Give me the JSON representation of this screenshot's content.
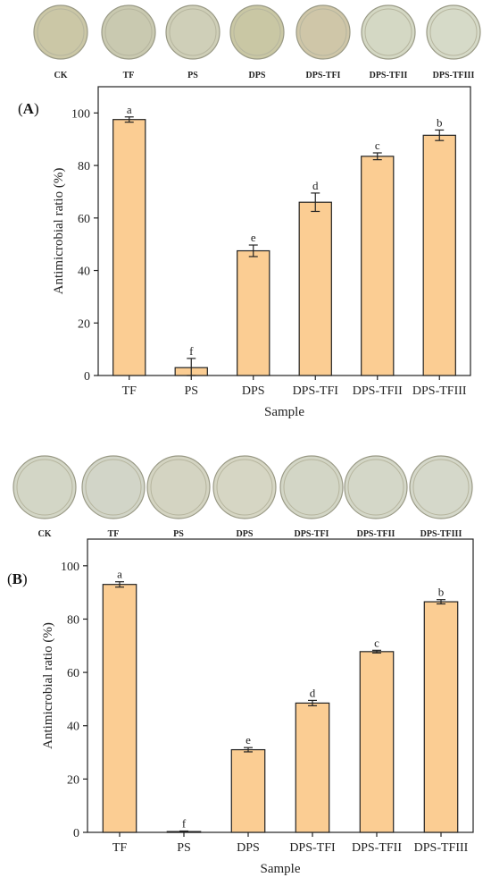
{
  "panels": [
    {
      "panel_label": "A",
      "plate_labels": [
        "CK",
        "TF",
        "PS",
        "DPS",
        "DPS-TFI",
        "DPS-TFII",
        "DPS-TFIII"
      ],
      "plate_colors": [
        "#cbc7a6",
        "#c9c9b0",
        "#cfcfb8",
        "#c9c7a4",
        "#cfc6a8",
        "#d4d8c4",
        "#d6dac8"
      ],
      "chart_data": {
        "type": "bar",
        "categories": [
          "TF",
          "PS",
          "DPS",
          "DPS-TFI",
          "DPS-TFII",
          "DPS-TFIII"
        ],
        "values": [
          97.5,
          3.0,
          47.5,
          66.0,
          83.5,
          91.5
        ],
        "errors": [
          1.0,
          3.5,
          2.2,
          3.5,
          1.3,
          2.0
        ],
        "significance": [
          "a",
          "f",
          "e",
          "d",
          "c",
          "b"
        ],
        "xlabel": "Sample",
        "ylabel": "Antimicrobial ratio (%)",
        "ylim": [
          0,
          110
        ],
        "yticks": [
          0,
          20,
          40,
          60,
          80,
          100
        ],
        "bar_color": "#fbcd93",
        "grid": false
      }
    },
    {
      "panel_label": "B",
      "plate_labels": [
        "CK",
        "TF",
        "PS",
        "DPS",
        "DPS-TFI",
        "DPS-TFII",
        "DPS-TFIII"
      ],
      "plate_colors": [
        "#d3d6c6",
        "#d2d5c8",
        "#d4d4c2",
        "#d6d6c4",
        "#d3d6c6",
        "#d4d7c8",
        "#d5d8ca"
      ],
      "chart_data": {
        "type": "bar",
        "categories": [
          "TF",
          "PS",
          "DPS",
          "DPS-TFI",
          "DPS-TFII",
          "DPS-TFIII"
        ],
        "values": [
          93.0,
          0.3,
          31.0,
          48.5,
          67.8,
          86.5
        ],
        "errors": [
          1.0,
          0.2,
          0.8,
          1.0,
          0.5,
          0.8
        ],
        "significance": [
          "a",
          "f",
          "e",
          "d",
          "c",
          "b"
        ],
        "xlabel": "Sample",
        "ylabel": "Antimicrobial ratio (%)",
        "ylim": [
          0,
          110
        ],
        "yticks": [
          0,
          20,
          40,
          60,
          80,
          100
        ],
        "bar_color": "#fbcd93",
        "grid": false
      }
    }
  ]
}
